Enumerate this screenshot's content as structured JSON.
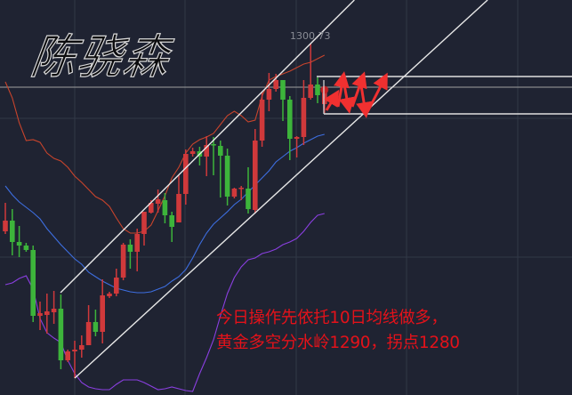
{
  "logo_text": "陈骁森",
  "annotation": {
    "line1": "今日操作先依托10日均线做多，",
    "line2": "黄金多空分水岭1290，拐点1280"
  },
  "colors": {
    "background": "#1f2332",
    "grid": "#323847",
    "up_candle": "#d0393b",
    "down_candle": "#3db43b",
    "upper_band": "#c8442c",
    "middle_band": "#3d6ee0",
    "lower_band": "#8a3fe0",
    "trendline": "#e8e8e8",
    "price_line": "#a0a0a0",
    "annotation": "#e3121a",
    "arrows": "#f03030"
  },
  "chart_data": {
    "type": "candlestick",
    "high_label": "1300.73",
    "current_price_line": 1288.5,
    "candles": [
      [
        1248,
        1256,
        1247.25,
        1251
      ],
      [
        1251,
        1254.25,
        1241.25,
        1245
      ],
      [
        1245,
        1249.5,
        1240.75,
        1244
      ],
      [
        1244,
        1244.75,
        1242.25,
        1242.75
      ],
      [
        1242.75,
        1244,
        1222.5,
        1224.25
      ],
      [
        1224.25,
        1228.25,
        1220.25,
        1225
      ],
      [
        1224.5,
        1230.5,
        1219.25,
        1225.5
      ],
      [
        1225.25,
        1231.25,
        1222,
        1226.25
      ],
      [
        1226.25,
        1230.25,
        1209.25,
        1211.75
      ],
      [
        1211.75,
        1214.75,
        1211.25,
        1214.25
      ],
      [
        1214.25,
        1217.25,
        1206.75,
        1214.75
      ],
      [
        1214.75,
        1218.75,
        1212.5,
        1216
      ],
      [
        1216,
        1227.25,
        1216,
        1222.5
      ],
      [
        1222.5,
        1226,
        1218.5,
        1219.75
      ],
      [
        1219.75,
        1234.5,
        1216.5,
        1230
      ],
      [
        1229.75,
        1231,
        1229.25,
        1230.5
      ],
      [
        1230.5,
        1237.5,
        1229.75,
        1235
      ],
      [
        1235,
        1244.75,
        1234.25,
        1244.25
      ],
      [
        1244.25,
        1245.75,
        1237.5,
        1242.25
      ],
      [
        1242.25,
        1248.75,
        1236.75,
        1247.25
      ],
      [
        1247.25,
        1253.5,
        1244,
        1253.5
      ],
      [
        1253.25,
        1256.75,
        1253,
        1256
      ],
      [
        1255.75,
        1259.75,
        1253.25,
        1257
      ],
      [
        1256.75,
        1258.75,
        1250.25,
        1252.5
      ],
      [
        1252.5,
        1253.5,
        1245,
        1249.25
      ],
      [
        1250.5,
        1263.75,
        1250.5,
        1258.5
      ],
      [
        1258.5,
        1271,
        1255.5,
        1269.75
      ],
      [
        1269.75,
        1271.5,
        1269,
        1270.5
      ],
      [
        1270.5,
        1271.75,
        1266.5,
        1269
      ],
      [
        1269,
        1274.75,
        1263.5,
        1272.25
      ],
      [
        1272.5,
        1274.5,
        1263.75,
        1272.25
      ],
      [
        1272,
        1273.5,
        1257.5,
        1269.25
      ],
      [
        1269.25,
        1271.25,
        1255.25,
        1257.75
      ],
      [
        1257.75,
        1260.25,
        1257.25,
        1260
      ],
      [
        1260,
        1260.75,
        1256.75,
        1260.25
      ],
      [
        1260,
        1266,
        1253,
        1254.25
      ],
      [
        1254,
        1276.75,
        1253,
        1273.5
      ],
      [
        1273.5,
        1287.25,
        1271.75,
        1285
      ],
      [
        1285,
        1292.5,
        1281.75,
        1288
      ],
      [
        1288,
        1292.25,
        1287.25,
        1290.5
      ],
      [
        1290.5,
        1290.5,
        1279,
        1285
      ],
      [
        1285,
        1286,
        1268,
        1274
      ],
      [
        1274,
        1274.75,
        1268.75,
        1274.5
      ],
      [
        1274.5,
        1290.5,
        1272.25,
        1285.5
      ],
      [
        1285.5,
        1300.73,
        1285,
        1289.25
      ],
      [
        1289.25,
        1291.25,
        1284,
        1286.25
      ],
      [
        1283.75,
        1288.5,
        1281.25,
        1288.5
      ]
    ],
    "candle_fields": [
      "open",
      "high",
      "low",
      "close"
    ],
    "upper_band": [
      1290,
      1285.5,
      1278.5,
      1273.5,
      1273.75,
      1273,
      1270,
      1268.5,
      1267.75,
      1266,
      1263.5,
      1261.75,
      1259.75,
      1257.75,
      1256.75,
      1255,
      1251.75,
      1248.75,
      1247.5,
      1247.5,
      1248,
      1249.75,
      1253.75,
      1258,
      1263,
      1266,
      1270,
      1272.5,
      1273.75,
      1274.5,
      1275.5,
      1278,
      1280.5,
      1281.75,
      1280.5,
      1278.75,
      1279.25,
      1286,
      1290.5,
      1291.5,
      1292.25,
      1293,
      1294,
      1295,
      1295.5,
      1296.5,
      1297.5
    ],
    "middle_band": [
      1260.75,
      1258.25,
      1256.25,
      1254.75,
      1253.25,
      1251.5,
      1248.75,
      1246.5,
      1244.25,
      1242.25,
      1240.25,
      1238.75,
      1236.5,
      1235.25,
      1234,
      1233,
      1232,
      1231.5,
      1231,
      1230.75,
      1230.75,
      1231,
      1231.75,
      1232.5,
      1234,
      1235.25,
      1237.25,
      1240.5,
      1244.25,
      1247.5,
      1250,
      1251.75,
      1253.5,
      1255.5,
      1257,
      1259,
      1261,
      1263,
      1265,
      1267.5,
      1269,
      1270.5,
      1271.5,
      1272.75,
      1273.75,
      1274.75,
      1275.25
    ],
    "lower_band": [
      1233,
      1233.5,
      1234.75,
      1235.5,
      1231.75,
      1223.5,
      1219.5,
      1218,
      1216.75,
      1211.75,
      1208,
      1205.5,
      1204.25,
      1203.75,
      1203.5,
      1203.5,
      1205,
      1206.25,
      1206.25,
      1206.25,
      1205.5,
      1204.5,
      1203.5,
      1203.75,
      1204.25,
      1203.75,
      1203.25,
      1203,
      1208,
      1212.5,
      1217.5,
      1224.25,
      1230.5,
      1235,
      1238,
      1240,
      1240.5,
      1241.75,
      1242.25,
      1243,
      1244.25,
      1245,
      1246,
      1248,
      1250.5,
      1252.5,
      1253
    ],
    "trendlines": [
      {
        "from": [
          7.95,
          1230.75
        ],
        "to": [
          50.3,
          1313
        ]
      },
      {
        "from": [
          10,
          1206.75
        ],
        "to": [
          69.5,
          1313
        ]
      }
    ],
    "range_box": {
      "from_index": 45,
      "top": 1291.5,
      "bottom": 1281
    },
    "grid": true
  }
}
